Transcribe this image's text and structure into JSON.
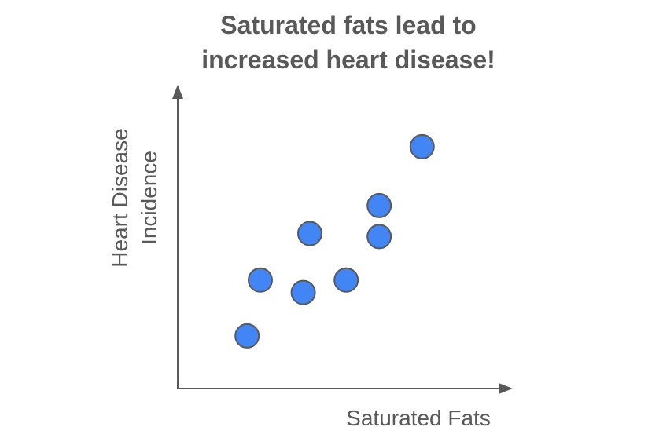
{
  "colors": {
    "point_fill": "#4285f4",
    "point_stroke": "#595959",
    "axis": "#595959",
    "text": "#595959"
  },
  "chart_data": {
    "type": "scatter",
    "title_lines": [
      "Saturated fats lead to",
      "increased heart disease!"
    ],
    "xlabel": "Saturated Fats",
    "ylabel_lines": [
      "Heart Disease",
      "Incidence"
    ],
    "xlim": [
      0,
      10
    ],
    "ylim": [
      0,
      10
    ],
    "grid": false,
    "tick_labels": false,
    "x": [
      2.1,
      2.5,
      3.8,
      4.0,
      5.1,
      6.1,
      6.1,
      7.4
    ],
    "y": [
      1.7,
      3.5,
      3.1,
      5.0,
      3.5,
      4.9,
      5.9,
      7.8
    ]
  }
}
